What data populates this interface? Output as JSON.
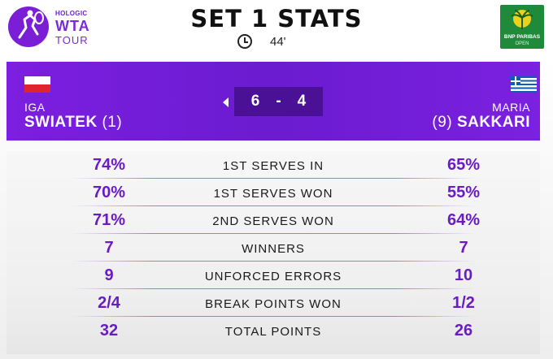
{
  "header": {
    "brand_sponsor": "HOLOGIC",
    "brand_name": "WTA",
    "brand_sub": "TOUR",
    "title": "SET 1 STATS",
    "duration": "44'",
    "event_logo_line1": "BNP PARIBAS",
    "event_logo_line2": "OPEN"
  },
  "players": {
    "p1": {
      "first": "IGA",
      "last": "SWIATEK",
      "seed": "(1)",
      "country_flag": "poland-flag"
    },
    "p2": {
      "first": "MARIA",
      "last": "SAKKARI",
      "seed": "(9)",
      "country_flag": "greece-flag"
    }
  },
  "score": {
    "p1": "6",
    "separator": "-",
    "p2": "4",
    "serving": "p1"
  },
  "stats": [
    {
      "label": "1ST SERVES IN",
      "p1": "74%",
      "p2": "65%"
    },
    {
      "label": "1ST SERVES WON",
      "p1": "70%",
      "p2": "55%"
    },
    {
      "label": "2ND SERVES WON",
      "p1": "71%",
      "p2": "64%"
    },
    {
      "label": "WINNERS",
      "p1": "7",
      "p2": "7"
    },
    {
      "label": "UNFORCED ERRORS",
      "p1": "9",
      "p2": "10"
    },
    {
      "label": "BREAK POINTS WON",
      "p1": "2/4",
      "p2": "1/2"
    },
    {
      "label": "TOTAL POINTS",
      "p1": "32",
      "p2": "26"
    }
  ],
  "colors": {
    "accent_purple": "#7c1fe0",
    "score_box": "#4a1196",
    "stat_value": "#6a1bc8",
    "event_green": "#1e8a3a"
  }
}
